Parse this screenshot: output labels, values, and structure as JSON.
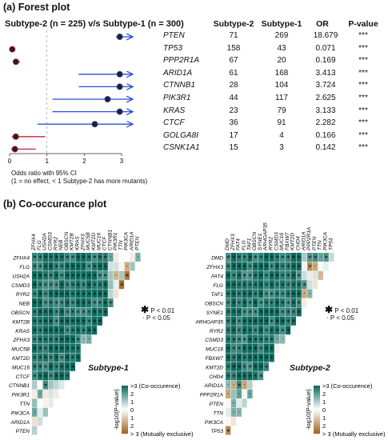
{
  "forest": {
    "section_title": "(a) Forest plot",
    "comparison_label": "Subtype-2 (n = 225) v/s Subtype-1 (n = 300)",
    "columns": [
      "Subtype-2",
      "Subtype-1",
      "OR",
      "P-value"
    ],
    "note_line1": "Odds ratio with 95% CI",
    "note_line2": "(1 = no effect, < 1 Subtype-2 has more mutants)",
    "axis_ticks": [
      "0",
      "1",
      "2",
      "3"
    ]
  },
  "cooc": {
    "section_title": "(b) Co-occurance plot",
    "sig_legend": {
      "star_label": "P < 0.01",
      "dot_label": "P < 0.05"
    },
    "color_legend": {
      "title": "-log10(P-value)",
      "ticks": [
        ">3 (Co-occurence)",
        "2",
        "1",
        "0",
        "1",
        "2",
        "> 3 (Mutually exclusive)"
      ]
    },
    "subtype1_label": "Subtype-1",
    "subtype2_label": "Subtype-2",
    "subtype1_genes": [
      "ZFHX4",
      "FLG",
      "USH2A",
      "CSMD3",
      "RYR2",
      "NEB",
      "OBSCN",
      "KMT2B",
      "KRAS",
      "ZFHX3",
      "MUC5B",
      "KMT2D",
      "MUC16",
      "CTCF",
      "CTNNB1",
      "PIK3R1",
      "TTN",
      "PIK3CA",
      "ARID1A",
      "PTEN"
    ],
    "subtype2_genes": [
      "DMD",
      "ZFHX3",
      "FAT4",
      "FLG",
      "TAF1",
      "OBSCN",
      "SYNE1",
      "ARHGAP35",
      "RYR2",
      "CSMD3",
      "MUC16",
      "FBXW7",
      "KMT2D",
      "CHD4",
      "ARID1A",
      "PPP2R1A",
      "PTEN",
      "TTN",
      "PIK3CA",
      "TP53"
    ]
  },
  "chart_data": [
    {
      "type": "scatter",
      "title": "Subtype-2 (n = 225) v/s Subtype-1 (n = 300)",
      "xlabel": "",
      "ylabel": "",
      "xlim": [
        0,
        3
      ],
      "rows": [
        {
          "gene": "PTEN",
          "subtype2": 71,
          "subtype1": 269,
          "or": 18.679,
          "or_text": "18.679",
          "p": "***",
          "ci_low": 2.85,
          "ci_high": 3.3,
          "arrow": true
        },
        {
          "gene": "TP53",
          "subtype2": 158,
          "subtype1": 43,
          "or": 0.071,
          "or_text": "0.071",
          "p": "***",
          "ci_low": 0.04,
          "ci_high": 0.11,
          "arrow": false
        },
        {
          "gene": "PPP2R1A",
          "subtype2": 67,
          "subtype1": 20,
          "or": 0.169,
          "or_text": "0.169",
          "p": "***",
          "ci_low": 0.1,
          "ci_high": 0.28,
          "arrow": false
        },
        {
          "gene": "ARID1A",
          "subtype2": 61,
          "subtype1": 168,
          "or": 3.413,
          "or_text": "3.413",
          "p": "***",
          "ci_low": 1.85,
          "ci_high": 3.3,
          "arrow": true
        },
        {
          "gene": "CTNNB1",
          "subtype2": 28,
          "subtype1": 104,
          "or": 3.724,
          "or_text": "3.724",
          "p": "***",
          "ci_low": 1.85,
          "ci_high": 3.3,
          "arrow": true
        },
        {
          "gene": "PIK3R1",
          "subtype2": 44,
          "subtype1": 117,
          "or": 2.625,
          "or_text": "2.625",
          "p": "***",
          "ci_low": 1.15,
          "ci_high": 3.3,
          "arrow": true
        },
        {
          "gene": "KRAS",
          "subtype2": 23,
          "subtype1": 79,
          "or": 3.133,
          "or_text": "3.133",
          "p": "***",
          "ci_low": 1.15,
          "ci_high": 3.3,
          "arrow": true
        },
        {
          "gene": "CTCF",
          "subtype2": 36,
          "subtype1": 91,
          "or": 2.282,
          "or_text": "2.282",
          "p": "***",
          "ci_low": 0.75,
          "ci_high": 3.3,
          "arrow": true
        },
        {
          "gene": "GOLGA8I",
          "subtype2": 17,
          "subtype1": 4,
          "or": 0.166,
          "or_text": "0.166",
          "p": "***",
          "ci_low": 0.06,
          "ci_high": 0.95,
          "arrow": false
        },
        {
          "gene": "CSNK1A1",
          "subtype2": 15,
          "subtype1": 3,
          "or": 0.142,
          "or_text": "0.142",
          "p": "***",
          "ci_low": 0.04,
          "ci_high": 0.7,
          "arrow": false
        }
      ]
    },
    {
      "type": "heatmap",
      "title": "Subtype-1",
      "genes": [
        "ZFHX4",
        "FLG",
        "USH2A",
        "CSMD3",
        "RYR2",
        "NEB",
        "OBSCN",
        "KMT2B",
        "KRAS",
        "ZFHX3",
        "MUC5B",
        "KMT2D",
        "MUC16",
        "CTCF",
        "CTNNB1",
        "PIK3R1",
        "TTN",
        "PIK3CA",
        "ARID1A",
        "PTEN"
      ],
      "note": "lower-triangle pairwise -log10(P) signed; positive = co-occurrence, negative = mutual exclusivity",
      "scale": [
        -3,
        3
      ]
    },
    {
      "type": "heatmap",
      "title": "Subtype-2",
      "genes": [
        "DMD",
        "ZFHX3",
        "FAT4",
        "FLG",
        "TAF1",
        "OBSCN",
        "SYNE1",
        "ARHGAP35",
        "RYR2",
        "CSMD3",
        "MUC16",
        "FBXW7",
        "KMT2D",
        "CHD4",
        "ARID1A",
        "PPP2R1A",
        "PTEN",
        "TTN",
        "PIK3CA",
        "TP53"
      ],
      "note": "lower-triangle pairwise -log10(P) signed; positive = co-occurrence, negative = mutual exclusivity",
      "scale": [
        -3,
        3
      ]
    }
  ]
}
